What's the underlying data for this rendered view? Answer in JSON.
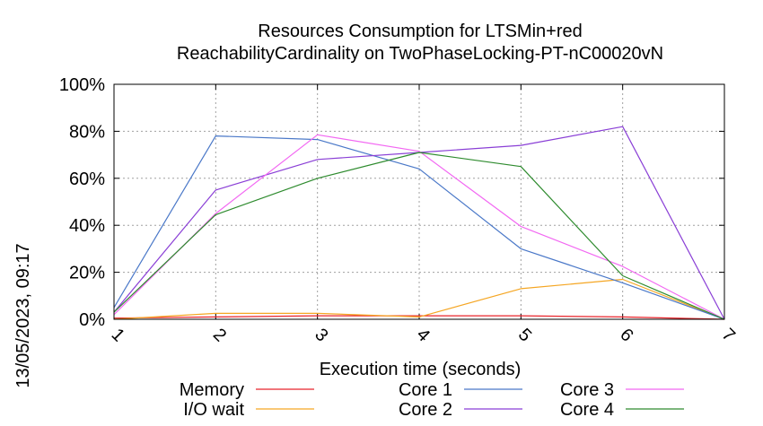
{
  "chart_data": {
    "type": "line",
    "title_line1": "Resources Consumption for LTSMin+red",
    "title_line2": "ReachabilityCardinality on TwoPhaseLocking-PT-nC00020vN",
    "xlabel": "Execution time (seconds)",
    "ylabel": "",
    "side_label": "13/05/2023, 09:17",
    "x": [
      1,
      2,
      3,
      4,
      5,
      6,
      7
    ],
    "x_tick_labels": [
      "1",
      "2",
      "3",
      "4",
      "5",
      "6",
      "7"
    ],
    "xlim": [
      1,
      7
    ],
    "ylim": [
      0,
      100
    ],
    "y_ticks": [
      0,
      20,
      40,
      60,
      80,
      100
    ],
    "y_tick_labels": [
      "0%",
      "20%",
      "40%",
      "60%",
      "80%",
      "100%"
    ],
    "grid": true,
    "legend_position": "bottom",
    "series": [
      {
        "name": "Memory",
        "color": "#e8232a",
        "values": [
          0.5,
          1,
          1.5,
          1.5,
          1.5,
          1,
          0
        ]
      },
      {
        "name": "I/O wait",
        "color": "#f5a623",
        "values": [
          0,
          2.5,
          2.5,
          1,
          13,
          17,
          0
        ]
      },
      {
        "name": "Core 1",
        "color": "#4a78c8",
        "values": [
          5,
          78,
          76.5,
          64,
          30,
          15.5,
          0
        ]
      },
      {
        "name": "Core 2",
        "color": "#8a3fd6",
        "values": [
          3,
          55,
          68,
          71,
          74,
          82,
          0
        ]
      },
      {
        "name": "Core 3",
        "color": "#f267f2",
        "values": [
          2,
          45,
          78.5,
          71.5,
          39.5,
          22.5,
          0
        ]
      },
      {
        "name": "Core 4",
        "color": "#2e8b2e",
        "values": [
          3,
          44.5,
          60,
          71,
          65,
          18.5,
          0
        ]
      }
    ]
  }
}
